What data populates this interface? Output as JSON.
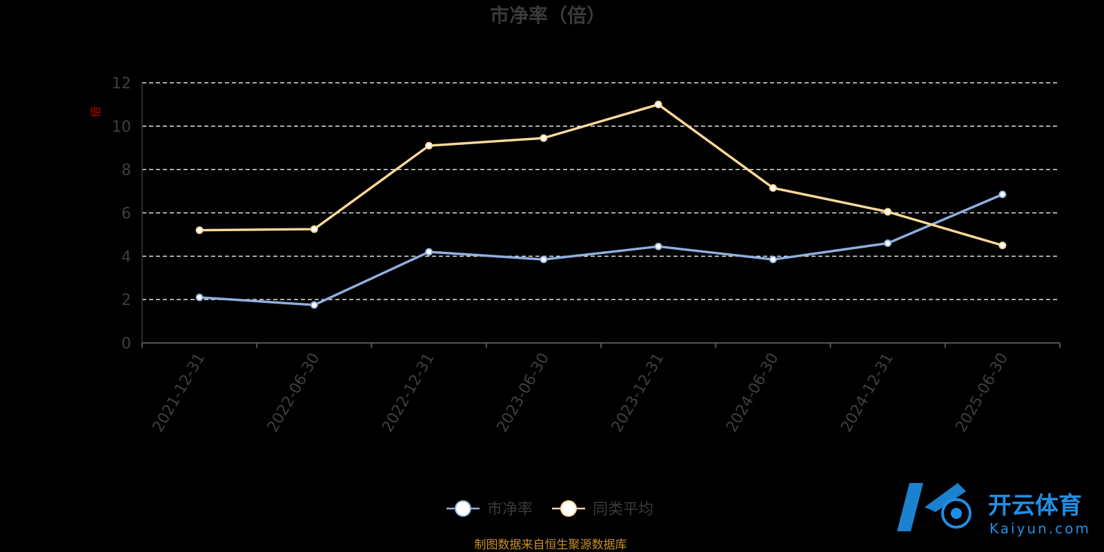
{
  "chart_data": {
    "type": "line",
    "title": "市净率（倍）",
    "ylabel": "倍",
    "categories": [
      "2021-12-31",
      "2022-06-30",
      "2022-12-31",
      "2023-06-30",
      "2023-12-31",
      "2024-06-30",
      "2024-12-31",
      "2025-06-30"
    ],
    "ylim": [
      0,
      12
    ],
    "yticks": [
      0,
      2,
      4,
      6,
      8,
      10,
      12
    ],
    "grid": true,
    "legend_position": "bottom-center",
    "series": [
      {
        "name": "市净率",
        "color": "#8fb0e0",
        "values": [
          2.1,
          1.75,
          4.2,
          3.85,
          4.45,
          3.85,
          4.6,
          6.85
        ]
      },
      {
        "name": "同类平均",
        "color": "#fcd89a",
        "values": [
          5.2,
          5.25,
          9.1,
          9.45,
          11.0,
          7.15,
          6.05,
          4.5
        ]
      }
    ]
  },
  "footer": {
    "source_note": "制图数据来自恒生聚源数据库"
  },
  "watermark": {
    "brand_cn": "开云体育",
    "brand_en": "Kaiyun.com",
    "color": "#1f8fe6"
  }
}
